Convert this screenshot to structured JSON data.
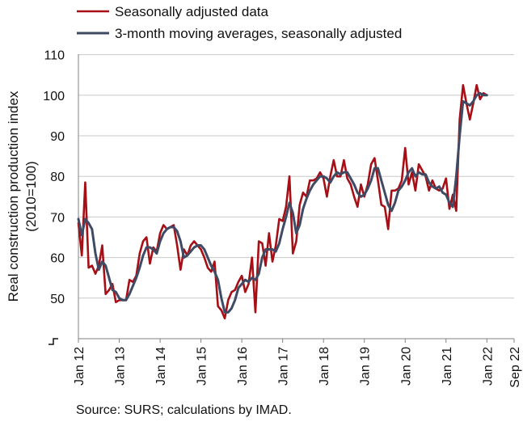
{
  "chart_data": {
    "type": "line",
    "title": "",
    "ylabel": [
      "Real construction production index",
      "(2010=100)"
    ],
    "ylim": [
      40,
      110
    ],
    "yticks": [
      50,
      60,
      70,
      80,
      90,
      100,
      110
    ],
    "grid": "horizontal",
    "legend_position": "top-left",
    "x_ticks": [
      {
        "label": "Jan 12",
        "month": 0
      },
      {
        "label": "Jan 13",
        "month": 12
      },
      {
        "label": "Jan 14",
        "month": 24
      },
      {
        "label": "Jan 15",
        "month": 36
      },
      {
        "label": "Jan 16",
        "month": 48
      },
      {
        "label": "Jan 17",
        "month": 60
      },
      {
        "label": "Jan 18",
        "month": 72
      },
      {
        "label": "Jan 19",
        "month": 84
      },
      {
        "label": "Jan 20",
        "month": 96
      },
      {
        "label": "Jan 21",
        "month": 108
      },
      {
        "label": "Jan 22",
        "month": 120
      },
      {
        "label": "Sep 22",
        "month": 128
      }
    ],
    "series": [
      {
        "name": "Seasonally adjusted data",
        "color": "#a50f15",
        "values": [
          68.5,
          60.5,
          78.5,
          57.5,
          58,
          56,
          58,
          63,
          51,
          52,
          53.5,
          49,
          49.5,
          49.5,
          49.5,
          54.5,
          54,
          55.5,
          61,
          64,
          65,
          58.5,
          62.5,
          61.5,
          66,
          68,
          67,
          67.5,
          68,
          63,
          57,
          62,
          60.5,
          63,
          64,
          63,
          62,
          60,
          57.5,
          56.5,
          59,
          48,
          47,
          45,
          49.5,
          51.5,
          52,
          54,
          55.5,
          51.5,
          53.5,
          60,
          46.5,
          64,
          63.5,
          58,
          66,
          59,
          63,
          69.5,
          69,
          72.5,
          80,
          61,
          64,
          73,
          76,
          75,
          79,
          79,
          79.5,
          81,
          79.5,
          75,
          80,
          84,
          80,
          80,
          84,
          79.5,
          78,
          75,
          72.5,
          78,
          75,
          78,
          83,
          84.5,
          79,
          73,
          72.5,
          67,
          76.5,
          76.5,
          77,
          79,
          87,
          78,
          81,
          76.5,
          83,
          81.5,
          80,
          76.5,
          79,
          77,
          76.5,
          77,
          79.5,
          72,
          75.5,
          71.5,
          94,
          102.5,
          98,
          94,
          98,
          102.5,
          99,
          100.5,
          100
        ]
      },
      {
        "name": "3-month moving averages, seasonally adjusted",
        "color": "#3f4b65",
        "values": [
          69.5,
          65.5,
          69.5,
          68.5,
          67,
          61,
          57,
          59,
          58,
          55,
          52,
          51.5,
          50,
          49.5,
          49.5,
          51,
          53,
          55,
          57.5,
          60.5,
          62.5,
          62.5,
          62,
          61,
          64,
          66,
          67,
          67.5,
          67.5,
          66.5,
          64,
          60,
          60.5,
          61.5,
          62.5,
          63,
          63,
          62,
          60,
          58,
          56.5,
          54.5,
          50,
          46.5,
          46.5,
          47.5,
          49.5,
          52.5,
          53.5,
          54.5,
          54,
          55,
          54.5,
          56,
          60,
          62,
          62,
          62,
          61.5,
          63.5,
          67,
          70,
          73.5,
          71,
          66,
          68,
          72,
          74.5,
          76.5,
          78,
          79,
          80,
          80,
          79.5,
          78.5,
          80,
          81,
          80.5,
          81,
          81,
          79.5,
          78,
          76,
          75,
          75.5,
          77,
          79,
          82,
          82,
          79,
          76,
          73,
          71.5,
          73.5,
          76.5,
          77.5,
          79,
          81,
          82,
          80,
          81,
          80.5,
          80.5,
          78.5,
          77.5,
          77,
          77.5,
          76,
          75.5,
          73.5,
          72.5,
          80,
          90,
          98.5,
          98,
          97.5,
          98.5,
          100,
          100.5,
          100,
          100
        ]
      }
    ]
  },
  "source_text": "Source: SURS; calculations by IMAD."
}
